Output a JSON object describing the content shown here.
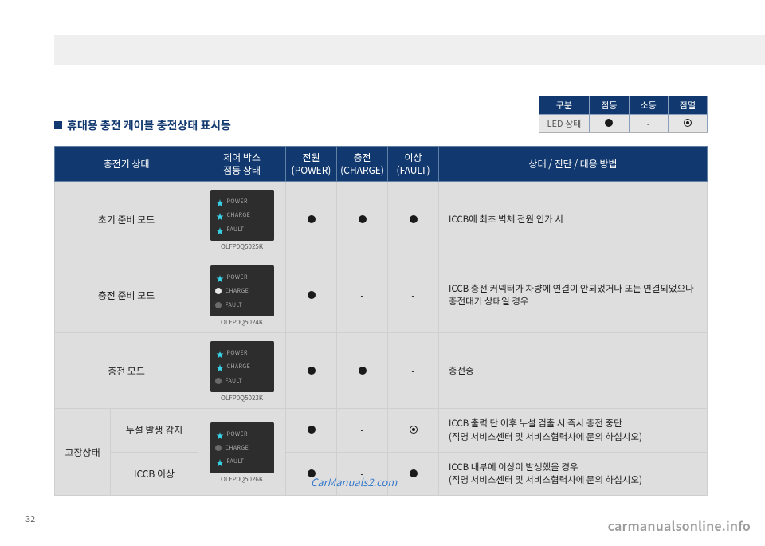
{
  "grey_band_bg": "#efefef",
  "navy": "#12396f",
  "title": "휴대용 충전 케이블 충전상태 표시등",
  "legend": {
    "headers": [
      "구분",
      "점등",
      "소등",
      "점멸"
    ],
    "row_label": "LED 상태",
    "cells": [
      "on",
      "dash",
      "blink"
    ]
  },
  "main_headers": {
    "charger": "충전기 상태",
    "box": "제어 박스\n점등 상태",
    "power": "전원\n(POWER)",
    "charge": "충전\n(CHARGE)",
    "fault": "이상\n(FAULT)",
    "desc": "상태 / 진단 / 대응 방법"
  },
  "cbox_labels": {
    "power": "POWER",
    "charge": "CHARGE",
    "fault": "FAULT"
  },
  "rows": [
    {
      "name": "초기 준비 모드",
      "box_leds": {
        "power": "star",
        "charge": "star",
        "fault": "star"
      },
      "box_id": "OLFP0Q5025K",
      "power": "on",
      "charge": "on",
      "fault": "on",
      "desc": "ICCB에 최초 벽체 전원 인가 시"
    },
    {
      "name": "충전 준비 모드",
      "box_leds": {
        "power": "star",
        "charge": "dot",
        "fault": "off"
      },
      "box_id": "OLFP0Q5024K",
      "power": "on",
      "charge": "dash",
      "fault": "dash",
      "desc": "ICCB 충전 커넥터가 차량에 연결이 안되었거나 또는 연결되었으나 충전대기 상태일 경우"
    },
    {
      "name": "충전 모드",
      "box_leds": {
        "power": "star",
        "charge": "star",
        "fault": "off"
      },
      "box_id": "OLFP0Q5023K",
      "power": "on",
      "charge": "on",
      "fault": "dash",
      "desc": "충전중"
    }
  ],
  "fault_group": {
    "group_label": "고장상태",
    "box_leds": {
      "power": "star",
      "charge": "off",
      "fault": "star"
    },
    "box_id": "OLFP0Q5026K",
    "sub": [
      {
        "name": "누설 발생 감지",
        "power": "on",
        "charge": "dash",
        "fault": "blink",
        "desc": "ICCB 출력 단 이후 누설 검출 시 즉시 충전 중단\n(직영 서비스센터 및 서비스협력사에 문의 하십시오)"
      },
      {
        "name": "ICCB 이상",
        "power": "on",
        "charge": "dash",
        "fault": "on",
        "desc": "ICCB 내부에 이상이 발생했을 경우\n(직영 서비스센터 및 서비스협력사에 문의 하십시오)"
      }
    ]
  },
  "page_number": "32",
  "watermark_small": "CarManuals2.com",
  "watermark_large": "carmanualsonline.info"
}
